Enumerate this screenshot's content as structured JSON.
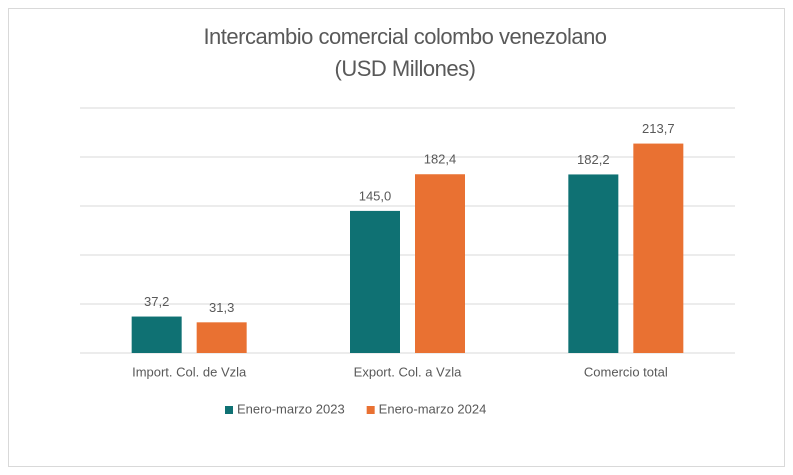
{
  "chart_data": {
    "type": "bar",
    "title": "Intercambio comercial colombo venezolano",
    "subtitle": "(USD Millones)",
    "categories": [
      "Import. Col. de Vzla",
      "Export. Col. a Vzla",
      "Comercio total"
    ],
    "series": [
      {
        "name": "Enero-marzo 2023",
        "color": "#0f7173",
        "values": [
          37.2,
          145.0,
          182.2
        ],
        "value_labels": [
          "37,2",
          "145,0",
          "182,2"
        ]
      },
      {
        "name": "Enero-marzo 2024",
        "color": "#e97132",
        "values": [
          31.3,
          182.4,
          213.7
        ],
        "value_labels": [
          "31,3",
          "182,4",
          "213,7"
        ]
      }
    ],
    "ylim": [
      0,
      250
    ],
    "yticks": [
      0,
      50,
      100,
      150,
      200,
      250
    ],
    "grid": true
  }
}
